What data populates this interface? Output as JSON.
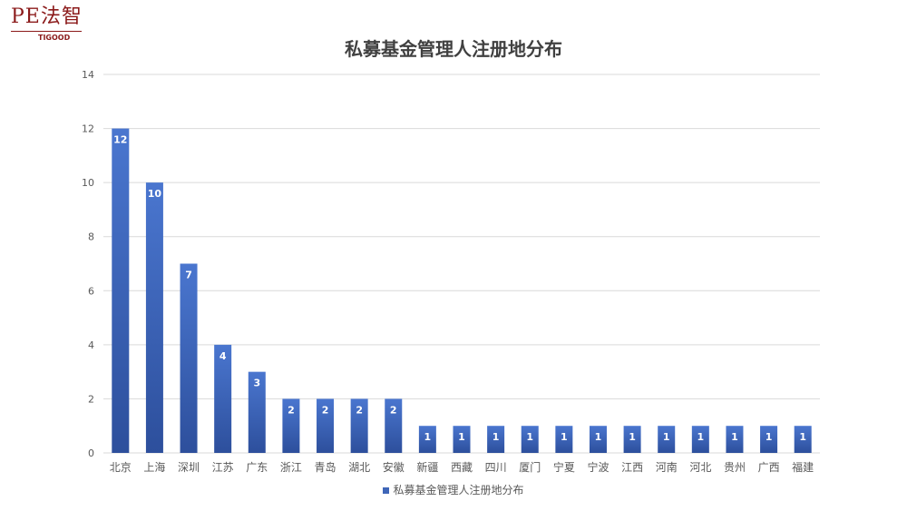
{
  "logo": {
    "text": "PE法智",
    "sub": "TIGOOD"
  },
  "chart_data": {
    "type": "bar",
    "title": "私募基金管理人注册地分布",
    "categories": [
      "北京",
      "上海",
      "深圳",
      "江苏",
      "广东",
      "浙江",
      "青岛",
      "湖北",
      "安徽",
      "新疆",
      "西藏",
      "四川",
      "厦门",
      "宁夏",
      "宁波",
      "江西",
      "河南",
      "河北",
      "贵州",
      "广西",
      "福建"
    ],
    "series": [
      {
        "name": "私募基金管理人注册地分布",
        "values": [
          12,
          10,
          7,
          4,
          3,
          2,
          2,
          2,
          2,
          1,
          1,
          1,
          1,
          1,
          1,
          1,
          1,
          1,
          1,
          1,
          1
        ]
      }
    ],
    "ylim": [
      0,
      14
    ],
    "yticks": [
      0,
      2,
      4,
      6,
      8,
      10,
      12,
      14
    ],
    "grid": true,
    "legend": "bottom",
    "data_labels": true,
    "colors": {
      "bar_top": "#4a76cf",
      "bar_bottom": "#2d4f9c",
      "grid": "#d9d9d9",
      "label": "#ffffff",
      "axis_text": "#595959"
    }
  }
}
